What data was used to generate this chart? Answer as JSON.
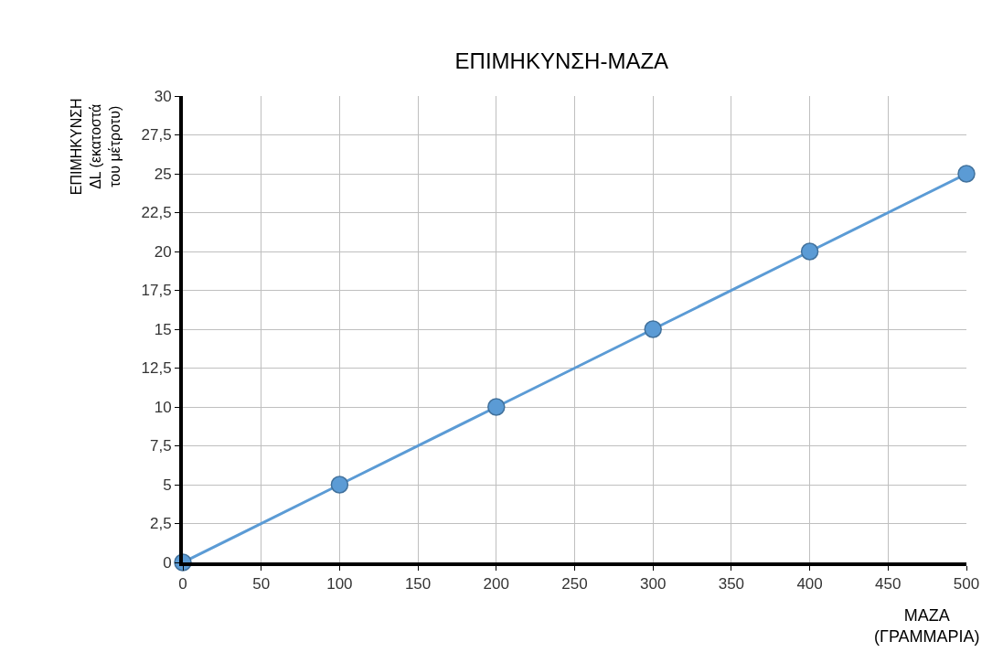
{
  "chart_data": {
    "type": "line",
    "title": "ΕΠΙΜΗΚΥΝΣΗ-ΜΑΖΑ",
    "xlabel": "ΜΑΖΑ\n(ΓΡΑΜΜΑΡΙΑ)",
    "ylabel": "ΕΠΙΜΗΚΥΝΣΗ\nΔL (εκατοστά\nτου μέτροτυ)",
    "x": [
      0,
      100,
      200,
      300,
      400,
      500
    ],
    "series": [
      {
        "color": "#5b9bd5",
        "values": [
          0,
          5,
          10,
          15,
          20,
          25
        ]
      }
    ],
    "xlim": [
      0,
      500
    ],
    "xticks": [
      0,
      50,
      100,
      150,
      200,
      250,
      300,
      350,
      400,
      450,
      500
    ],
    "ylim": [
      0,
      30
    ],
    "yticks": [
      0,
      {
        "value": 2.5,
        "label": "2,5"
      },
      5,
      {
        "value": 7.5,
        "label": "7,5"
      },
      10,
      {
        "value": 12.5,
        "label": "12,5"
      },
      15,
      {
        "value": 17.5,
        "label": "17,5"
      },
      20,
      {
        "value": 22.5,
        "label": "22,5"
      },
      25,
      {
        "value": 27.5,
        "label": "27,5"
      },
      30
    ],
    "grid": true,
    "marker": "circle",
    "line_style": "solid",
    "legend": false
  }
}
